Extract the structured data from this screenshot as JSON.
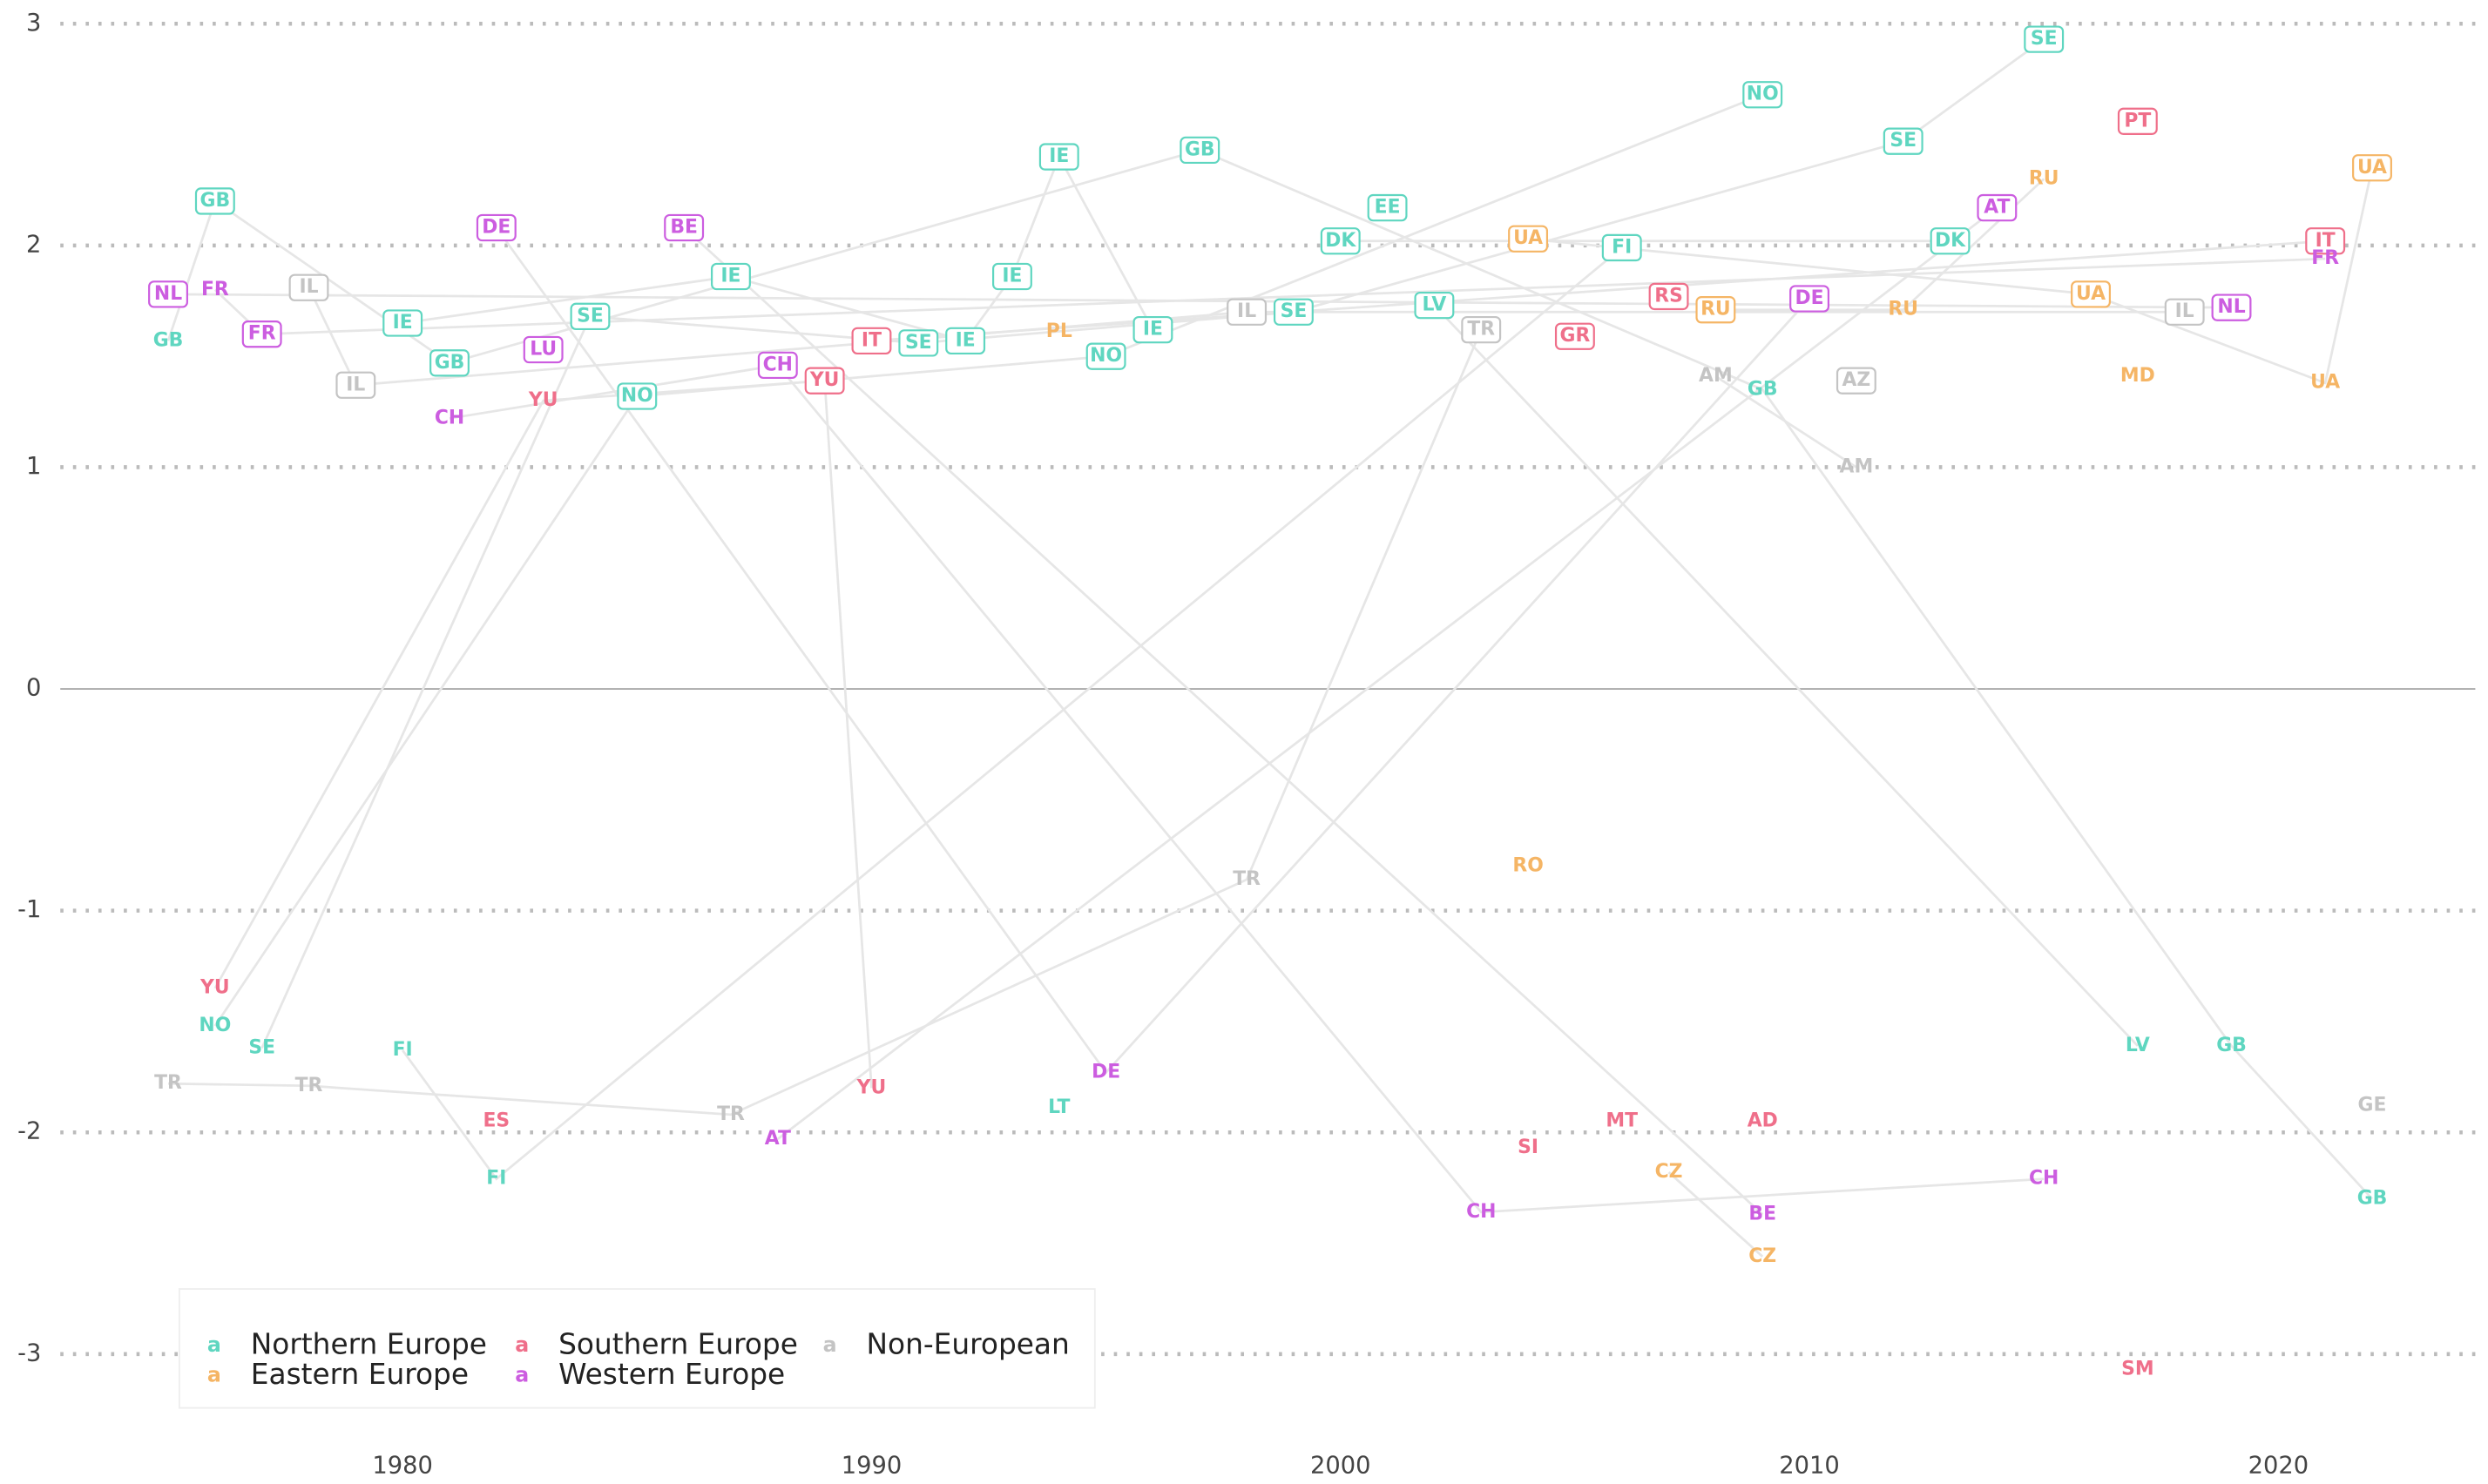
{
  "chart_data": {
    "type": "scatter",
    "xlim": [
      1972.7,
      2024.2
    ],
    "ylim": [
      -3.4,
      3.1
    ],
    "xticks": [
      1980,
      1990,
      2000,
      2010,
      2020
    ],
    "yticks": [
      -3,
      -2,
      -1,
      0,
      1,
      2,
      3
    ],
    "grid": true,
    "legend": "bottom-left",
    "series": [
      {
        "name": "Northern Europe",
        "color": "#5fd6c0",
        "x": [
          1975,
          1976,
          1976,
          1977,
          1980,
          1980,
          1981,
          1982,
          1984,
          1985,
          1987,
          1991,
          1992,
          1993,
          1994,
          1994,
          1995,
          1996,
          1997,
          1999,
          2000,
          2001,
          2002,
          2006,
          2009,
          2009,
          2012,
          2013,
          2015,
          2017,
          2019,
          2022
        ],
        "labels": [
          "GB",
          "GB",
          "NO",
          "SE",
          "IE",
          "FI",
          "GB",
          "FI",
          "SE",
          "NO",
          "IE",
          "SE",
          "IE",
          "IE",
          "IE",
          "LT",
          "NO",
          "IE",
          "GB",
          "SE",
          "DK",
          "EE",
          "LV",
          "FI",
          "NO",
          "GB",
          "SE",
          "DK",
          "SE",
          "LV",
          "GB",
          "GB"
        ],
        "values": [
          1.57,
          2.2,
          -1.52,
          -1.62,
          1.65,
          -1.63,
          1.47,
          -2.21,
          1.68,
          1.32,
          1.86,
          1.56,
          1.57,
          1.86,
          2.4,
          -1.89,
          1.5,
          1.62,
          2.43,
          1.7,
          2.02,
          2.17,
          1.73,
          1.99,
          2.68,
          1.35,
          2.47,
          2.02,
          2.93,
          -1.61,
          -1.61,
          -2.3
        ]
      },
      {
        "name": "Eastern Europe",
        "color": "#f5b565",
        "x": [
          1994,
          2004,
          2004,
          2007,
          2008,
          2009,
          2012,
          2015,
          2016,
          2017,
          2021,
          2022
        ],
        "labels": [
          "PL",
          "UA",
          "RO",
          "CZ",
          "RU",
          "CZ",
          "RU",
          "RU",
          "UA",
          "MD",
          "UA",
          "UA"
        ],
        "values": [
          1.61,
          2.03,
          -0.8,
          -2.18,
          1.71,
          -2.56,
          1.71,
          2.3,
          1.78,
          1.41,
          1.38,
          2.35
        ]
      },
      {
        "name": "Southern Europe",
        "color": "#ef6f8a",
        "x": [
          1976,
          1982,
          1983,
          1989,
          1990,
          1990,
          2004,
          2005,
          2006,
          2007,
          2009,
          2017,
          2017,
          2021
        ],
        "labels": [
          "YU",
          "ES",
          "YU",
          "YU",
          "IT",
          "YU",
          "SI",
          "GR",
          "MT",
          "RS",
          "AD",
          "PT",
          "SM",
          "IT"
        ],
        "values": [
          -1.35,
          -1.95,
          1.3,
          1.39,
          1.57,
          -1.8,
          -2.07,
          1.59,
          -1.95,
          1.77,
          -1.95,
          2.56,
          -3.07,
          2.02
        ]
      },
      {
        "name": "Western Europe",
        "color": "#cc5de0",
        "x": [
          1975,
          1976,
          1977,
          1981,
          1982,
          1983,
          1986,
          1988,
          1988,
          1995,
          2003,
          2009,
          2010,
          2014,
          2015,
          2019,
          2021
        ],
        "labels": [
          "NL",
          "FR",
          "FR",
          "CH",
          "DE",
          "LU",
          "BE",
          "CH",
          "AT",
          "DE",
          "CH",
          "BE",
          "DE",
          "AT",
          "CH",
          "NL",
          "FR"
        ],
        "values": [
          1.78,
          1.8,
          1.6,
          1.22,
          2.08,
          1.53,
          2.08,
          1.46,
          -2.03,
          -1.73,
          -2.36,
          -2.37,
          1.76,
          2.17,
          -2.21,
          1.72,
          1.94
        ]
      },
      {
        "name": "Non-European",
        "color": "#c4c4c4",
        "x": [
          1975,
          1978,
          1978,
          1979,
          1987,
          1998,
          1998,
          2003,
          2008,
          2011,
          2011,
          2018,
          2022
        ],
        "labels": [
          "TR",
          "IL",
          "TR",
          "IL",
          "TR",
          "IL",
          "TR",
          "TR",
          "AM",
          "AZ",
          "AM",
          "IL",
          "GE"
        ],
        "values": [
          -1.78,
          1.81,
          -1.79,
          1.37,
          -1.92,
          1.7,
          -0.86,
          1.62,
          1.41,
          1.39,
          1.0,
          1.7,
          -1.88
        ]
      }
    ]
  }
}
